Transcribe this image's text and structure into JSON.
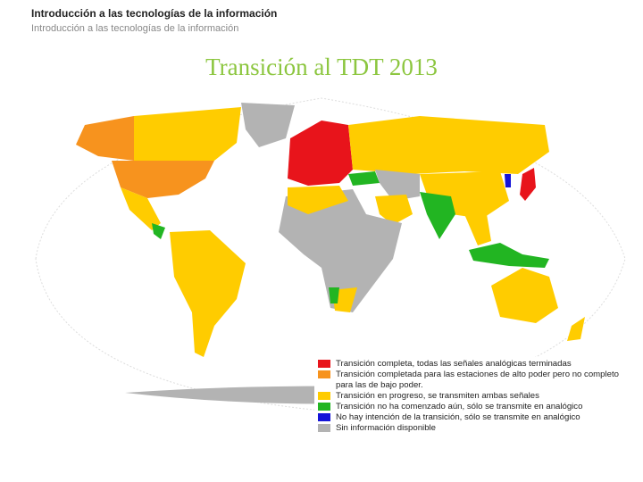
{
  "header": {
    "title": "Introducción a las tecnologías de la información",
    "subtitle": "Introducción a las tecnologías de la información"
  },
  "slide": {
    "title": "Transición al TDT 2013"
  },
  "legend": {
    "items": [
      {
        "label": "Transición completa, todas las señales analógicas terminadas",
        "color": "#e8141b"
      },
      {
        "label": "Transición completada para las estaciones de alto poder pero no completo para las de bajo poder.",
        "color": "#f7931e"
      },
      {
        "label": "Transición en progreso, se transmiten ambas señales",
        "color": "#ffcc00"
      },
      {
        "label": "Transición no ha comenzado aún, sólo se transmite en analógico",
        "color": "#22b522"
      },
      {
        "label": "No hay intención de la transición, sólo se transmite en analógico",
        "color": "#1414d8"
      },
      {
        "label": "Sin información disponible",
        "color": "#b3b3b3"
      }
    ]
  }
}
